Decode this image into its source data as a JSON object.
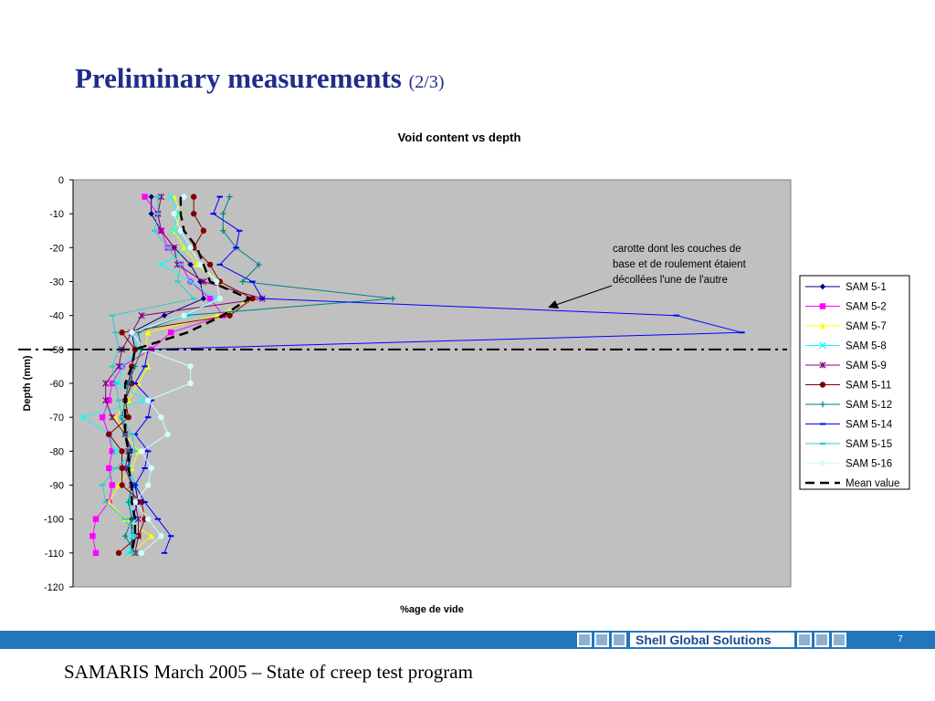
{
  "slide": {
    "title": "Preliminary measurements",
    "title_suffix": "(2/3)",
    "footer": "SAMARIS March 2005 – State of creep test program",
    "brand": "Shell Global Solutions",
    "page_number": "7"
  },
  "chart_data": {
    "type": "line",
    "title": "Void content vs depth",
    "xlabel": "%age de vide",
    "ylabel": "Depth (mm)",
    "xlim": [
      0,
      22
    ],
    "ylim": [
      -120,
      0
    ],
    "yticks": [
      0,
      -10,
      -20,
      -30,
      -40,
      -50,
      -60,
      -70,
      -80,
      -90,
      -100,
      -110,
      -120
    ],
    "grid": false,
    "plot_background": "#c0c0c0",
    "legend_position": "right",
    "annotation": {
      "lines": [
        "carotte dont les couches de",
        "base et de roulement étaient",
        "décollées l'une de l'autre"
      ]
    },
    "reference_line": {
      "y": -50,
      "style": "dash-dot",
      "color": "#000000"
    },
    "series": [
      {
        "name": "SAM 5-1",
        "color": "#000080",
        "marker": "diamond",
        "x": [
          2.4,
          2.4,
          2.7,
          3.1,
          3.6,
          3.9,
          4.0,
          2.8,
          1.8,
          1.9,
          1.8,
          1.7,
          1.6,
          1.5,
          1.6,
          1.8,
          1.7,
          1.9,
          2.0,
          1.8,
          1.8
        ],
        "y": [
          -5,
          -10,
          -15,
          -20,
          -25,
          -30,
          -35,
          -40,
          -45,
          -50,
          -55,
          -60,
          -65,
          -70,
          -75,
          -80,
          -85,
          -90,
          -95,
          -100,
          -110
        ]
      },
      {
        "name": "SAM 5-2",
        "color": "#ff00ff",
        "marker": "square",
        "x": [
          2.2,
          2.6,
          2.7,
          2.9,
          3.3,
          3.6,
          4.2,
          4.6,
          3.0,
          2.4,
          1.5,
          1.2,
          1.1,
          0.9,
          1.1,
          1.2,
          1.1,
          1.2,
          1.1,
          0.7,
          0.6,
          0.7
        ],
        "y": [
          -5,
          -10,
          -15,
          -20,
          -25,
          -30,
          -35,
          -40,
          -45,
          -50,
          -55,
          -60,
          -65,
          -70,
          -75,
          -80,
          -85,
          -90,
          -95,
          -100,
          -105,
          -110
        ]
      },
      {
        "name": "SAM 5-7",
        "color": "#ffff00",
        "marker": "triangle",
        "x": [
          3.1,
          3.3,
          3.1,
          3.4,
          3.8,
          4.5,
          5.5,
          4.4,
          2.3,
          2.2,
          2.3,
          2.0,
          1.7,
          1.3,
          1.6,
          2.0,
          1.8,
          1.4,
          1.1,
          1.6,
          2.4,
          1.8
        ],
        "y": [
          -5,
          -10,
          -15,
          -20,
          -25,
          -30,
          -35,
          -40,
          -45,
          -50,
          -55,
          -60,
          -65,
          -70,
          -75,
          -80,
          -85,
          -90,
          -95,
          -100,
          -105,
          -110
        ]
      },
      {
        "name": "SAM 5-8",
        "color": "#00ffff",
        "marker": "x",
        "x": [
          3.0,
          3.2,
          3.1,
          3.6,
          2.7,
          3.6,
          4.4,
          3.5,
          1.8,
          2.0,
          1.5,
          1.4,
          2.2,
          0.3,
          1.1,
          1.3,
          1.7,
          1.9,
          1.7,
          1.9,
          1.8,
          1.7
        ],
        "y": [
          -5,
          -10,
          -15,
          -20,
          -25,
          -30,
          -35,
          -40,
          -45,
          -50,
          -55,
          -60,
          -65,
          -70,
          -75,
          -80,
          -85,
          -90,
          -95,
          -100,
          -105,
          -110
        ]
      },
      {
        "name": "SAM 5-9",
        "color": "#800080",
        "marker": "star",
        "x": [
          2.7,
          2.6,
          2.7,
          3.1,
          3.2,
          4.0,
          5.8,
          2.1,
          1.8,
          1.5,
          1.4,
          1.0,
          1.0,
          1.2,
          1.6,
          1.7,
          1.6,
          1.8,
          1.9,
          2.0,
          2.0,
          1.9
        ],
        "y": [
          -5,
          -10,
          -15,
          -20,
          -25,
          -30,
          -35,
          -40,
          -45,
          -50,
          -55,
          -60,
          -65,
          -70,
          -75,
          -80,
          -85,
          -90,
          -95,
          -100,
          -105,
          -110
        ]
      },
      {
        "name": "SAM 5-11",
        "color": "#800000",
        "marker": "circle",
        "x": [
          3.7,
          3.7,
          4.0,
          3.7,
          4.2,
          4.5,
          5.5,
          4.8,
          1.5,
          1.9,
          1.8,
          1.8,
          1.6,
          1.7,
          1.1,
          1.5,
          1.5,
          1.5,
          2.1,
          2.2,
          2.0,
          1.4
        ],
        "y": [
          -5,
          -10,
          -15,
          -20,
          -25,
          -30,
          -35,
          -40,
          -45,
          -50,
          -55,
          -60,
          -65,
          -70,
          -75,
          -80,
          -85,
          -90,
          -95,
          -100,
          -105,
          -110
        ]
      },
      {
        "name": "SAM 5-12",
        "color": "#008080",
        "marker": "plus",
        "x": [
          4.8,
          4.6,
          4.6,
          5.0,
          5.7,
          5.2,
          9.8,
          3.4,
          2.0,
          2.1,
          1.9,
          1.7,
          1.6,
          1.5,
          1.6,
          1.7,
          1.7,
          1.8,
          1.7,
          1.8,
          1.6,
          1.9
        ],
        "y": [
          -5,
          -10,
          -15,
          -20,
          -25,
          -30,
          -35,
          -40,
          -45,
          -50,
          -55,
          -60,
          -65,
          -70,
          -75,
          -80,
          -85,
          -90,
          -95,
          -100,
          -105,
          -110
        ]
      },
      {
        "name": "SAM 5-14",
        "color": "#0000ff",
        "marker": "dash",
        "x": [
          4.5,
          4.3,
          5.1,
          5.0,
          4.5,
          5.5,
          5.8,
          18.5,
          20.5,
          2.3,
          2.2,
          1.9,
          2.4,
          2.3,
          1.9,
          2.3,
          2.2,
          1.9,
          2.2,
          2.6,
          3.0,
          2.8
        ],
        "y": [
          -5,
          -10,
          -15,
          -20,
          -25,
          -30,
          -35,
          -40,
          -45,
          -50,
          -55,
          -60,
          -65,
          -70,
          -75,
          -80,
          -85,
          -90,
          -95,
          -100,
          -105,
          -110
        ]
      },
      {
        "name": "SAM 5-15",
        "color": "#33cccc",
        "marker": "bar",
        "x": [
          2.6,
          2.6,
          2.5,
          2.9,
          3.3,
          3.2,
          3.7,
          1.2,
          1.3,
          1.4,
          1.2,
          1.3,
          1.4,
          1.5,
          1.8,
          1.9,
          1.3,
          0.9,
          1.0,
          1.6,
          1.9,
          1.8
        ],
        "y": [
          -5,
          -10,
          -15,
          -20,
          -25,
          -30,
          -35,
          -40,
          -45,
          -50,
          -55,
          -60,
          -65,
          -70,
          -75,
          -80,
          -85,
          -90,
          -95,
          -100,
          -105,
          -110
        ]
      },
      {
        "name": "SAM 5-16",
        "color": "#ccffff",
        "marker": "circle",
        "x": [
          3.4,
          3.1,
          3.3,
          3.6,
          3.9,
          4.4,
          4.5,
          3.4,
          1.8,
          2.2,
          3.6,
          3.6,
          2.3,
          2.7,
          2.9,
          2.1,
          2.4,
          2.3,
          1.9,
          2.3,
          2.7,
          2.1
        ],
        "y": [
          -5,
          -10,
          -15,
          -20,
          -25,
          -30,
          -35,
          -40,
          -45,
          -50,
          -55,
          -60,
          -65,
          -70,
          -75,
          -80,
          -85,
          -90,
          -95,
          -100,
          -105,
          -110
        ]
      },
      {
        "name": "Mean value",
        "color": "#000000",
        "dashed": true,
        "x": [
          3.3,
          3.3,
          3.4,
          3.8,
          4.0,
          4.2,
          5.4,
          4.6,
          3.5,
          1.9,
          1.8,
          1.6,
          1.6,
          1.6,
          1.6,
          1.7,
          1.7,
          1.8,
          1.8,
          1.9,
          1.9,
          1.8
        ],
        "y": [
          -5,
          -10,
          -15,
          -20,
          -25,
          -30,
          -35,
          -40,
          -45,
          -50,
          -55,
          -60,
          -65,
          -70,
          -75,
          -80,
          -85,
          -90,
          -95,
          -100,
          -105,
          -110
        ]
      }
    ]
  }
}
